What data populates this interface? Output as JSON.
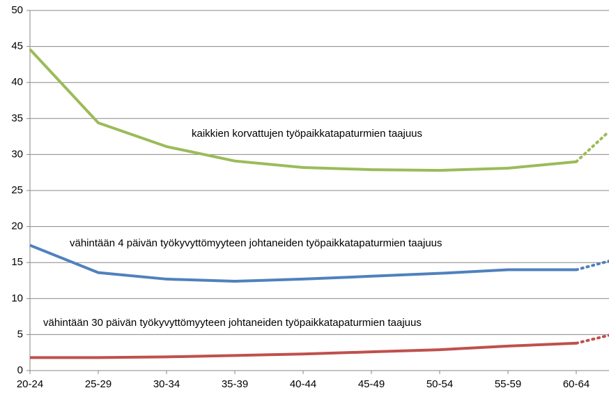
{
  "chart_data": {
    "type": "line",
    "categories": [
      "20-24",
      "25-29",
      "30-34",
      "35-39",
      "40-44",
      "45-49",
      "50-54",
      "55-59",
      "60-64",
      null
    ],
    "series": [
      {
        "name": "kaikkien korvattujen työpaikkatapaturmien taajuus",
        "color": "#9bbb59",
        "values": [
          44.6,
          34.4,
          31.1,
          29.1,
          28.2,
          27.9,
          27.8,
          28.1,
          29.0,
          33.2
        ]
      },
      {
        "name": "vähintään 4 päivän työkyvyttömyyteen johtaneiden työpaikkatapaturmien taajuus",
        "color": "#4f81bd",
        "values": [
          17.4,
          13.6,
          12.7,
          12.4,
          12.7,
          13.1,
          13.5,
          14.0,
          14.0,
          15.2
        ]
      },
      {
        "name": "vähintään 30 päivän työkyvyttömyyteen johtaneiden työpaikkatapaturmien taajuus",
        "color": "#c0504d",
        "values": [
          1.8,
          1.8,
          1.9,
          2.1,
          2.3,
          2.6,
          2.9,
          3.4,
          3.8,
          4.9
        ]
      }
    ],
    "dashed_last_segment": true,
    "ylim": [
      0,
      50
    ],
    "yticks": [
      0,
      5,
      10,
      15,
      20,
      25,
      30,
      35,
      40,
      45,
      50
    ],
    "grid": true
  }
}
